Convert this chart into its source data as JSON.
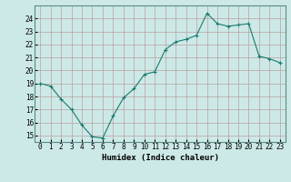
{
  "x": [
    0,
    1,
    2,
    3,
    4,
    5,
    6,
    7,
    8,
    9,
    10,
    11,
    12,
    13,
    14,
    15,
    16,
    17,
    18,
    19,
    20,
    21,
    22,
    23
  ],
  "y": [
    19.0,
    18.8,
    17.8,
    17.0,
    15.8,
    14.9,
    14.8,
    16.5,
    17.9,
    18.6,
    19.7,
    19.9,
    21.6,
    22.2,
    22.4,
    22.7,
    24.4,
    23.6,
    23.4,
    23.5,
    23.6,
    21.1,
    20.9,
    20.6
  ],
  "line_color": "#1a7a6e",
  "marker": "+",
  "marker_size": 3,
  "marker_lw": 0.8,
  "line_width": 0.8,
  "bg_color": "#cce9e7",
  "grid_color": "#b8a0a0",
  "xlabel": "Humidex (Indice chaleur)",
  "xlabel_fontsize": 6.5,
  "tick_fontsize": 5.5,
  "xlim": [
    -0.5,
    23.5
  ],
  "ylim": [
    14.5,
    25.0
  ],
  "yticks": [
    15,
    16,
    17,
    18,
    19,
    20,
    21,
    22,
    23,
    24
  ],
  "xticks": [
    0,
    1,
    2,
    3,
    4,
    5,
    6,
    7,
    8,
    9,
    10,
    11,
    12,
    13,
    14,
    15,
    16,
    17,
    18,
    19,
    20,
    21,
    22,
    23
  ]
}
